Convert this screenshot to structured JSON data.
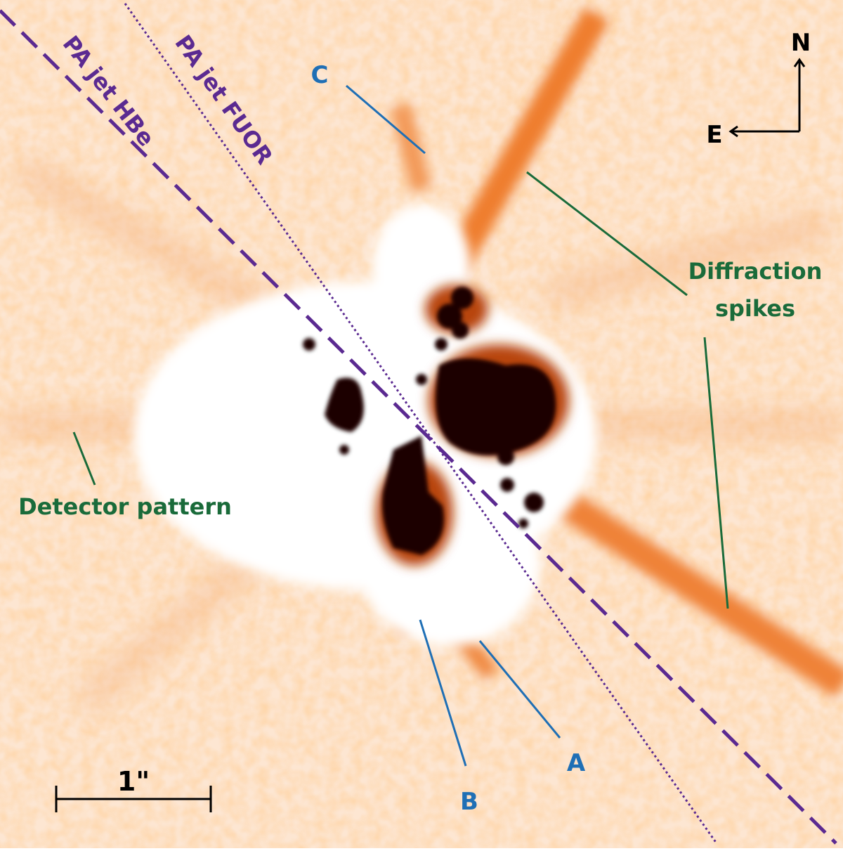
{
  "labels": {
    "jet_hbe": "PA jet HBe",
    "jet_fuor": "PA jet FUOR",
    "c": "C",
    "b": "B",
    "a": "A",
    "north": "N",
    "east": "E",
    "diffraction": [
      "Diffraction",
      "spikes"
    ],
    "detector": "Detector pattern",
    "scale": "1\""
  }
}
